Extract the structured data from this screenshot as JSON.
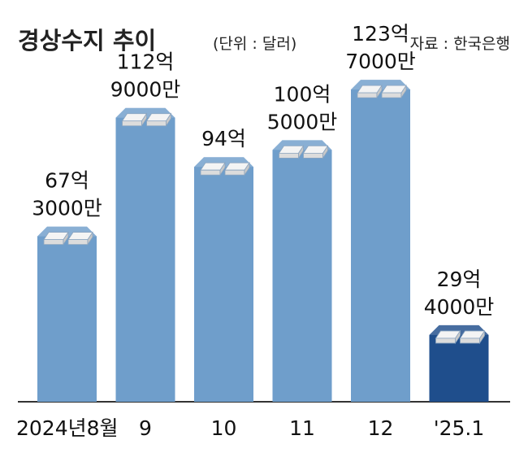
{
  "header": {
    "title": "경상수지 추이",
    "unit": "(단위 : 달러)",
    "source": "자료 : 한국은행"
  },
  "colors": {
    "background": "#ffffff",
    "bar": "#6f9ecb",
    "bar_highlight": "#1f4e8c",
    "money_icon": "#f4f4f4",
    "axis": "#333333"
  },
  "chart_data": {
    "type": "bar",
    "title": "경상수지 추이",
    "unit": "달러",
    "categories": [
      "2024년8월",
      "9",
      "10",
      "11",
      "12",
      "'25.1"
    ],
    "values": [
      6730000000,
      11290000000,
      9400000000,
      10050000000,
      12370000000,
      2940000000
    ],
    "labels": [
      [
        "67억",
        "3000만"
      ],
      [
        "112억",
        "9000만"
      ],
      [
        "94억",
        ""
      ],
      [
        "100억",
        "5000만"
      ],
      [
        "123억",
        "7000만"
      ],
      [
        "29억",
        "4000만"
      ]
    ],
    "highlight_index": 5,
    "ylim": [
      0,
      13000000000
    ],
    "grid": false,
    "legend": "none"
  }
}
